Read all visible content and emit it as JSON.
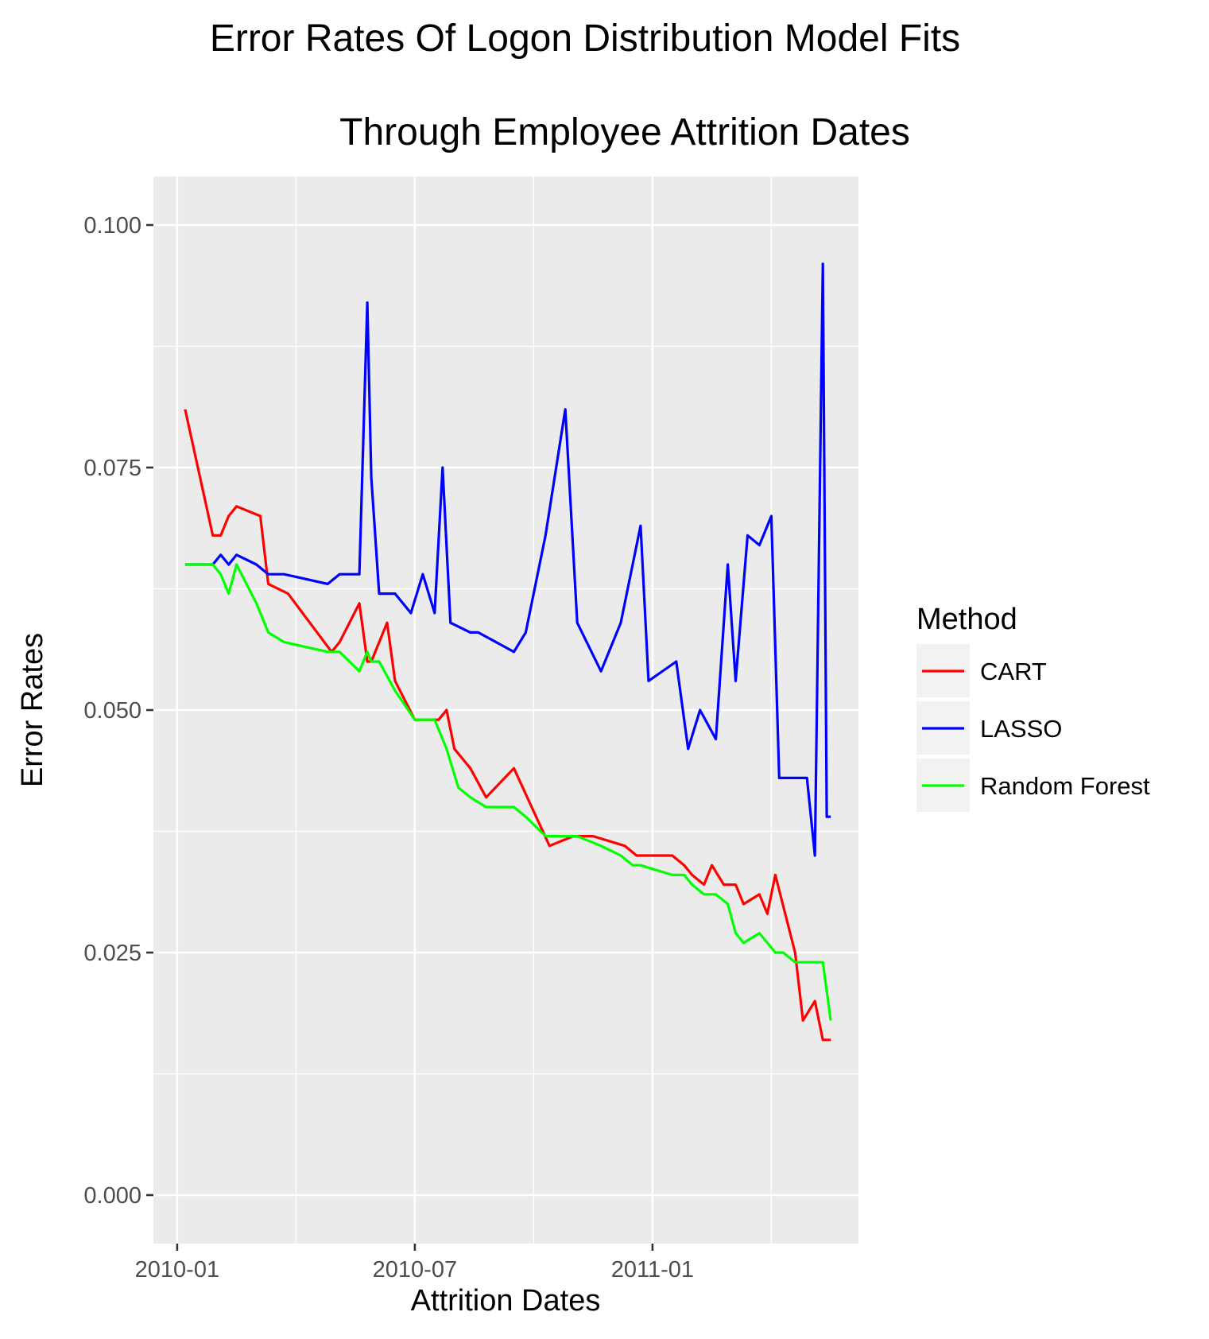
{
  "chart_data": {
    "type": "line",
    "title": "Error Rates Of Logon Distribution Model Fits",
    "subtitle": "Through Employee Attrition Dates",
    "xlabel": "Attrition Dates",
    "ylabel": "Error Rates",
    "x_ticks": [
      "2010-01",
      "2010-07",
      "2011-01"
    ],
    "y_ticks": [
      "0.000",
      "0.025",
      "0.050",
      "0.075",
      "0.100"
    ],
    "xlim": [
      -0.6,
      17.2
    ],
    "ylim": [
      -0.005,
      0.105
    ],
    "grid": true,
    "legend": {
      "title": "Method",
      "placement": "right"
    },
    "series": [
      {
        "name": "CART",
        "color": "#ff0000",
        "x": [
          0.2,
          0.9,
          1.1,
          1.3,
          1.5,
          2.1,
          2.3,
          2.8,
          3.9,
          4.1,
          4.6,
          4.8,
          4.9,
          5.3,
          5.5,
          6.0,
          6.2,
          6.6,
          6.8,
          7.0,
          7.4,
          7.8,
          8.5,
          9.4,
          10.0,
          10.5,
          11.3,
          11.6,
          12.5,
          12.8,
          13.0,
          13.3,
          13.5,
          13.8,
          14.1,
          14.3,
          14.7,
          14.9,
          15.1,
          15.6,
          15.8,
          16.1,
          16.3,
          16.5
        ],
        "y": [
          0.081,
          0.068,
          0.068,
          0.07,
          0.071,
          0.07,
          0.063,
          0.062,
          0.056,
          0.057,
          0.061,
          0.055,
          0.055,
          0.059,
          0.053,
          0.049,
          0.049,
          0.049,
          0.05,
          0.046,
          0.044,
          0.041,
          0.044,
          0.036,
          0.037,
          0.037,
          0.036,
          0.035,
          0.035,
          0.034,
          0.033,
          0.032,
          0.034,
          0.032,
          0.032,
          0.03,
          0.031,
          0.029,
          0.033,
          0.025,
          0.018,
          0.02,
          0.016,
          0.016
        ]
      },
      {
        "name": "LASSO",
        "color": "#0000ff",
        "x": [
          0.2,
          0.9,
          1.1,
          1.3,
          1.5,
          2.0,
          2.3,
          2.7,
          3.8,
          4.1,
          4.6,
          4.8,
          4.9,
          5.1,
          5.3,
          5.5,
          5.9,
          6.2,
          6.5,
          6.7,
          6.9,
          7.4,
          7.6,
          8.5,
          8.8,
          9.3,
          9.8,
          10.1,
          10.7,
          11.2,
          11.7,
          11.9,
          12.6,
          12.9,
          13.2,
          13.6,
          13.9,
          14.1,
          14.4,
          14.7,
          15.0,
          15.2,
          15.6,
          15.9,
          16.1,
          16.3,
          16.4,
          16.5
        ],
        "y": [
          0.065,
          0.065,
          0.066,
          0.065,
          0.066,
          0.065,
          0.064,
          0.064,
          0.063,
          0.064,
          0.064,
          0.092,
          0.074,
          0.062,
          0.062,
          0.062,
          0.06,
          0.064,
          0.06,
          0.075,
          0.059,
          0.058,
          0.058,
          0.056,
          0.058,
          0.068,
          0.081,
          0.059,
          0.054,
          0.059,
          0.069,
          0.053,
          0.055,
          0.046,
          0.05,
          0.047,
          0.065,
          0.053,
          0.068,
          0.067,
          0.07,
          0.043,
          0.043,
          0.043,
          0.035,
          0.096,
          0.039,
          0.039
        ]
      },
      {
        "name": "Random Forest",
        "color": "#00ff00",
        "x": [
          0.2,
          0.9,
          1.1,
          1.3,
          1.5,
          2.0,
          2.3,
          2.7,
          3.8,
          4.1,
          4.6,
          4.8,
          4.9,
          5.1,
          5.5,
          6.0,
          6.3,
          6.5,
          6.8,
          7.1,
          7.4,
          7.8,
          8.5,
          8.8,
          9.3,
          9.8,
          10.1,
          10.7,
          11.2,
          11.5,
          11.7,
          12.5,
          12.8,
          13.0,
          13.3,
          13.6,
          13.9,
          14.1,
          14.3,
          14.7,
          15.1,
          15.3,
          15.6,
          15.8,
          16.0,
          16.3,
          16.5
        ],
        "y": [
          0.065,
          0.065,
          0.064,
          0.062,
          0.065,
          0.061,
          0.058,
          0.057,
          0.056,
          0.056,
          0.054,
          0.056,
          0.055,
          0.055,
          0.052,
          0.049,
          0.049,
          0.049,
          0.046,
          0.042,
          0.041,
          0.04,
          0.04,
          0.039,
          0.037,
          0.037,
          0.037,
          0.036,
          0.035,
          0.034,
          0.034,
          0.033,
          0.033,
          0.032,
          0.031,
          0.031,
          0.03,
          0.027,
          0.026,
          0.027,
          0.025,
          0.025,
          0.024,
          0.024,
          0.024,
          0.024,
          0.018
        ]
      }
    ]
  }
}
